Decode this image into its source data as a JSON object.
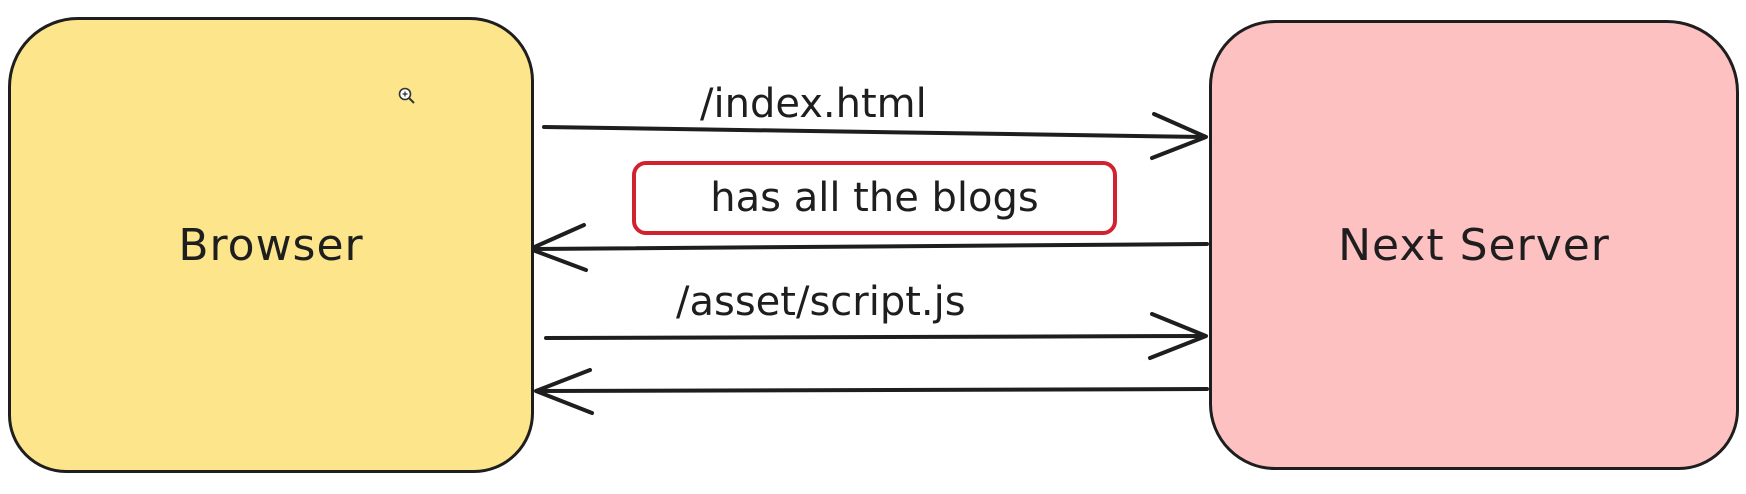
{
  "nodes": {
    "browser": {
      "label": "Browser",
      "color": "#fde58c"
    },
    "server": {
      "label": "Next Server",
      "color": "#fdc1c1"
    }
  },
  "edges": [
    {
      "from": "browser",
      "to": "server",
      "label": "/index.html"
    },
    {
      "from": "server",
      "to": "browser",
      "label": "has all the blogs",
      "highlight_color": "#d0232f"
    },
    {
      "from": "browser",
      "to": "server",
      "label": "/asset/script.js"
    },
    {
      "from": "server",
      "to": "browser",
      "label": ""
    }
  ],
  "icons": {
    "cursor": "zoom-in-icon"
  }
}
